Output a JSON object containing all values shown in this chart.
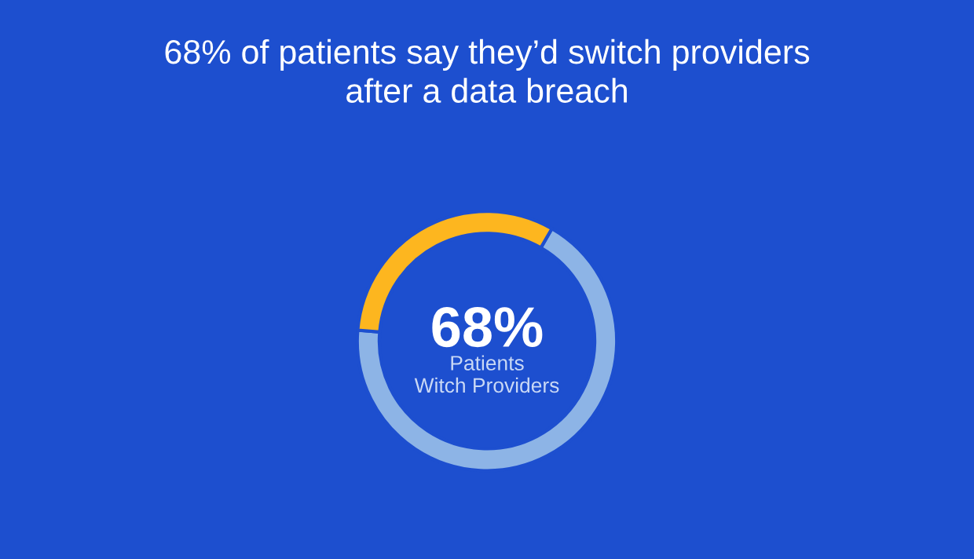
{
  "chart_data": {
    "type": "donut",
    "title": "68% of patients say they’d switch providers\nafter a data breach",
    "categories": [
      null,
      null
    ],
    "values": [
      68,
      32
    ],
    "colors": [
      "#8db4e6",
      "#fdb61f"
    ],
    "annotations": [
      "68%",
      "Patients\nWitch Providers"
    ]
  }
}
